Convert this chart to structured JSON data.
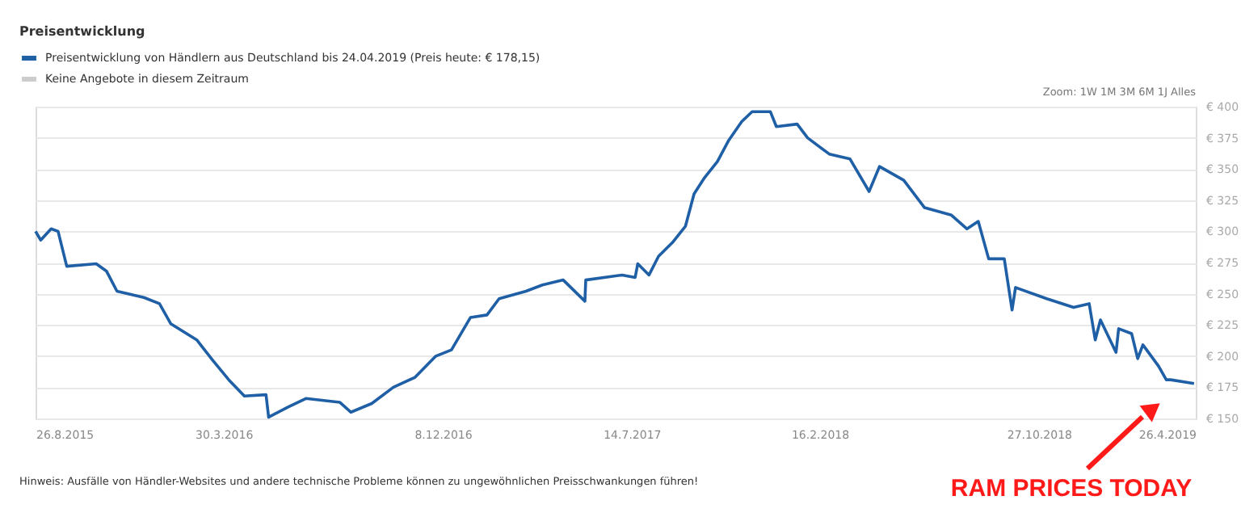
{
  "chart_data": {
    "type": "line",
    "title": "Preisentwicklung",
    "x": [
      "2015-08-26",
      "2015-09-01",
      "2015-09-13",
      "2015-09-21",
      "2015-10-01",
      "2015-11-04",
      "2015-11-16",
      "2015-11-28",
      "2015-12-29",
      "2016-01-16",
      "2016-01-29",
      "2016-02-28",
      "2016-03-17",
      "2016-04-05",
      "2016-04-23",
      "2016-05-18",
      "2016-05-21",
      "2016-06-12",
      "2016-07-03",
      "2016-08-11",
      "2016-08-24",
      "2016-09-17",
      "2016-10-12",
      "2016-11-06",
      "2016-11-30",
      "2016-12-18",
      "2017-01-09",
      "2017-01-28",
      "2017-02-11",
      "2017-03-14",
      "2017-04-02",
      "2017-04-26",
      "2017-05-21",
      "2017-05-22",
      "2017-07-03",
      "2017-07-18",
      "2017-07-21",
      "2017-08-03",
      "2017-08-14",
      "2017-08-30",
      "2017-09-14",
      "2017-09-24",
      "2017-10-06",
      "2017-10-21",
      "2017-11-03",
      "2017-11-18",
      "2017-11-30",
      "2017-12-21",
      "2017-12-28",
      "2018-01-21",
      "2018-02-02",
      "2018-02-27",
      "2018-03-23",
      "2018-04-14",
      "2018-04-26",
      "2018-05-24",
      "2018-06-17",
      "2018-07-18",
      "2018-08-05",
      "2018-08-18",
      "2018-08-30",
      "2018-09-17",
      "2018-09-26",
      "2018-09-30",
      "2018-11-05",
      "2018-12-06",
      "2018-12-24",
      "2018-12-31",
      "2019-01-06",
      "2019-01-24",
      "2019-01-27",
      "2019-02-11",
      "2019-02-18",
      "2019-02-24",
      "2019-03-14",
      "2019-03-23",
      "2019-03-28",
      "2019-04-24"
    ],
    "series": [
      {
        "name": "Preisentwicklung von Händlern aus Deutschland bis 24.04.2019 (Preis heute: € 178,15)",
        "color": "#1f5fa6",
        "values": [
          300,
          293,
          302,
          300,
          272,
          274,
          268,
          252,
          247,
          242,
          226,
          213,
          197,
          181,
          168,
          169,
          151,
          159,
          166,
          163,
          155,
          162,
          175,
          183,
          200,
          205,
          231,
          233,
          246,
          252,
          257,
          261,
          244,
          261,
          265,
          263,
          274,
          265,
          280,
          291,
          304,
          330,
          343,
          356,
          373,
          388,
          396,
          396,
          384,
          386,
          375,
          362,
          358,
          332,
          352,
          341,
          319,
          313,
          302,
          308,
          278,
          278,
          237,
          255,
          246,
          239,
          242,
          213,
          229,
          203,
          222,
          218,
          198,
          209,
          192,
          181,
          181,
          178
        ]
      },
      {
        "name": "Keine Angebote in diesem Zeitraum",
        "color": "#cccccc",
        "values": [
          null,
          null,
          null,
          null,
          null,
          null,
          null,
          null,
          null,
          null,
          null,
          null,
          null,
          null,
          null,
          null,
          null,
          null,
          null,
          null,
          null,
          null,
          null,
          null,
          null,
          null,
          null,
          null,
          null,
          null,
          null,
          null,
          null,
          null,
          null,
          null,
          null,
          null,
          null,
          null,
          null,
          null,
          null,
          null,
          null,
          null,
          null,
          null,
          null,
          null,
          null,
          null,
          null,
          null,
          null,
          null,
          null,
          null,
          null,
          null,
          null,
          null,
          null,
          null,
          null,
          null,
          null,
          null,
          null,
          null,
          null,
          null,
          null,
          null,
          null,
          null,
          null,
          null
        ]
      }
    ],
    "xlim": [
      "2015-08-26",
      "2019-04-26"
    ],
    "xticks": [
      {
        "value": "2015-08-26",
        "label": "26.8.2015"
      },
      {
        "value": "2016-03-30",
        "label": "30.3.2016"
      },
      {
        "value": "2016-12-08",
        "label": "8.12.2016"
      },
      {
        "value": "2017-07-14",
        "label": "14.7.2017"
      },
      {
        "value": "2018-02-16",
        "label": "16.2.2018"
      },
      {
        "value": "2018-10-27",
        "label": "27.10.2018"
      },
      {
        "value": "2019-04-26",
        "label": "26.4.2019"
      }
    ],
    "ylim": [
      150,
      400
    ],
    "yticks": [
      {
        "value": 150,
        "label": "€ 150"
      },
      {
        "value": 175,
        "label": "€ 175"
      },
      {
        "value": 200,
        "label": "€ 200"
      },
      {
        "value": 225,
        "label": "€ 225"
      },
      {
        "value": 250,
        "label": "€ 250"
      },
      {
        "value": 275,
        "label": "€ 275"
      },
      {
        "value": 300,
        "label": "€ 300"
      },
      {
        "value": 325,
        "label": "€ 325"
      },
      {
        "value": 350,
        "label": "€ 350"
      },
      {
        "value": 375,
        "label": "€ 375"
      },
      {
        "value": 400,
        "label": "€ 400"
      }
    ],
    "grid": "y",
    "legend": "top left",
    "marker": "none",
    "line_style": "solid",
    "annotations": [
      "Zoom: 1W 1M 3M 6M 1J Alles",
      "Hinweis: Ausfälle von Händler-Websites und andere technische Probleme können zu ungewöhnlichen Preisschwankungen führen!",
      "RAM PRICES TODAY"
    ]
  }
}
